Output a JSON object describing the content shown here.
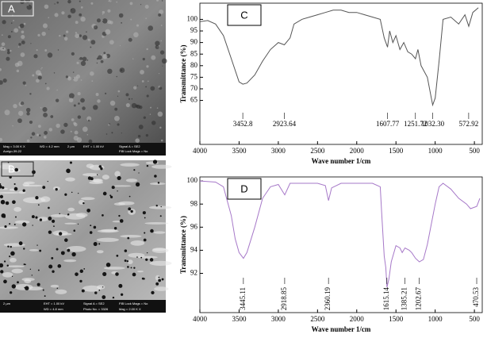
{
  "images": [
    {
      "label": "A",
      "info": [
        "Mag = 3.00 K X",
        "WD = 4.2 mm",
        "EHT = 1.00 kV",
        "Signal A = SE2",
        "Aurigo-39-22",
        "FIB Lock Mags = No",
        "2 µm"
      ]
    },
    {
      "label": "B",
      "info": [
        "2 µm",
        "EHT = 1.00 kV",
        "Signal A = SE2",
        "FIB Lock Mags = No",
        "WD = 4.8 mm",
        "Photo No. = 3326",
        "Mag = 2.00 K X"
      ]
    }
  ],
  "chart_data": [
    {
      "type": "line",
      "panel_label": "C",
      "xlabel": "Wave number 1/cm",
      "ylabel": "Transmittance (%)",
      "color": "#555555",
      "x": [
        4000,
        3900,
        3800,
        3700,
        3600,
        3500,
        3452,
        3400,
        3300,
        3200,
        3100,
        3000,
        2923,
        2850,
        2800,
        2700,
        2600,
        2500,
        2400,
        2300,
        2200,
        2100,
        2000,
        1900,
        1800,
        1700,
        1650,
        1607,
        1580,
        1540,
        1500,
        1450,
        1400,
        1350,
        1300,
        1251,
        1220,
        1180,
        1100,
        1060,
        1032,
        1000,
        950,
        900,
        800,
        700,
        620,
        572,
        520,
        450
      ],
      "values": [
        99,
        99.5,
        98,
        93,
        83,
        73,
        72,
        72.5,
        76,
        82,
        87,
        90,
        89,
        92,
        98,
        100,
        101,
        102,
        103,
        104,
        104,
        103,
        103,
        102,
        101,
        100,
        92,
        88,
        95,
        90,
        93,
        87,
        90,
        86,
        85,
        83,
        87,
        80,
        75,
        68,
        63,
        66,
        82,
        100,
        101,
        98,
        102,
        97,
        103,
        105
      ],
      "xlim": [
        4000,
        400
      ],
      "ylim": [
        46,
        107
      ],
      "xticks": [
        4000,
        3500,
        3000,
        2500,
        2000,
        1500,
        1000,
        500
      ],
      "yticks": [
        65,
        70,
        75,
        80,
        85,
        90,
        95,
        100
      ],
      "peaks": [
        {
          "value": 3452.8,
          "label": "3452.8"
        },
        {
          "value": 2923.64,
          "label": "2923.64"
        },
        {
          "value": 1607.77,
          "label": "1607.77"
        },
        {
          "value": 1251.72,
          "label": "1251.72"
        },
        {
          "value": 1032.3,
          "label": "1032.30"
        },
        {
          "value": 572.92,
          "label": "572.92"
        }
      ]
    },
    {
      "type": "line",
      "panel_label": "D",
      "xlabel": "Wave number 1/cm",
      "ylabel": "Transmittance (%)",
      "color": "#a678c8",
      "x": [
        4000,
        3800,
        3700,
        3600,
        3550,
        3500,
        3445,
        3400,
        3300,
        3200,
        3100,
        3000,
        2918,
        2850,
        2500,
        2400,
        2360,
        2320,
        2200,
        1800,
        1700,
        1680,
        1650,
        1630,
        1615,
        1590,
        1560,
        1500,
        1450,
        1420,
        1385,
        1330,
        1300,
        1250,
        1202,
        1150,
        1100,
        1000,
        950,
        900,
        800,
        700,
        600,
        550,
        470,
        430
      ],
      "values": [
        100,
        99.9,
        99.5,
        97,
        95,
        93.8,
        93.3,
        93.8,
        96,
        98.5,
        99.5,
        99.7,
        98.8,
        99.8,
        99.8,
        99.6,
        98.3,
        99.4,
        99.8,
        99.8,
        99.5,
        97,
        93.5,
        92.5,
        90.8,
        91.5,
        93,
        94.4,
        94.2,
        93.8,
        94.2,
        94,
        93.8,
        93.3,
        93,
        93.2,
        94.5,
        98,
        99.5,
        99.8,
        99.3,
        98.5,
        98,
        97.6,
        97.8,
        98.5
      ],
      "xlim": [
        4000,
        400
      ],
      "ylim": [
        88.6,
        100.35
      ],
      "xticks": [
        4000,
        3500,
        3000,
        2500,
        2000,
        1500,
        1000,
        500
      ],
      "yticks": [
        92,
        94,
        96,
        98,
        100
      ],
      "peaks": [
        {
          "value": 3445.11,
          "label": "3445.11"
        },
        {
          "value": 2918.85,
          "label": "2918.85"
        },
        {
          "value": 2360.19,
          "label": "2360.19"
        },
        {
          "value": 1615.14,
          "label": "1615.14"
        },
        {
          "value": 1385.21,
          "label": "1385.21"
        },
        {
          "value": 1202.67,
          "label": "1202.67"
        },
        {
          "value": 470.53,
          "label": "470.53"
        }
      ]
    }
  ]
}
